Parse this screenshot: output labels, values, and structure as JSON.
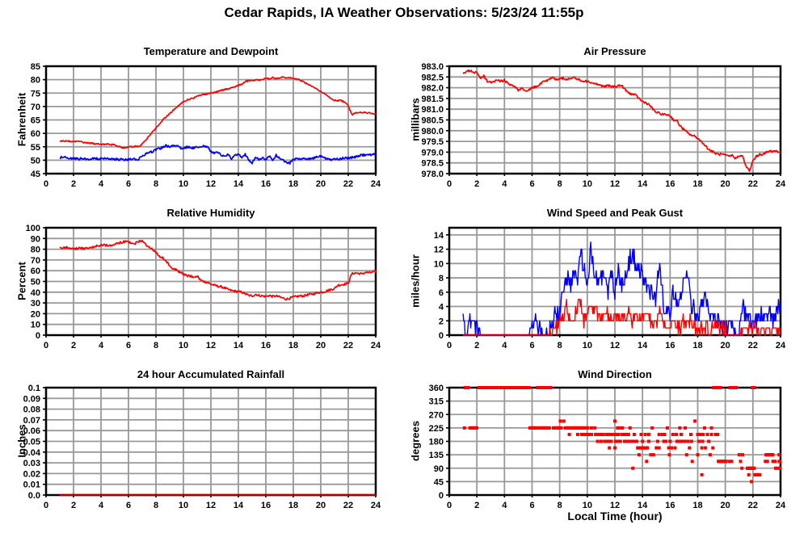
{
  "page_title": "Cedar Rapids, IA Weather Observations: 5/23/24 11:55p",
  "colors": {
    "line_red": "#ff0000",
    "line_blue": "#0000ff",
    "line_dark_red": "#aa0000",
    "grid_gray": "#999999",
    "frame_black": "#000000",
    "background": "#ffffff"
  },
  "chart_data": [
    {
      "type": "line",
      "title": "Temperature and Dewpoint",
      "ylabel": "Fahrenheit",
      "xlim": [
        0,
        24
      ],
      "xticks": [
        0,
        2,
        4,
        6,
        8,
        10,
        12,
        14,
        16,
        18,
        20,
        22,
        24
      ],
      "ylim": [
        45,
        85
      ],
      "yticks": [
        45,
        50,
        55,
        60,
        65,
        70,
        75,
        80,
        85
      ],
      "grid": true,
      "series": [
        {
          "name": "temperature",
          "color": "#ff0000",
          "x0": 1,
          "dx": 0.25,
          "jitter": 0.25,
          "width": 1.7,
          "values": [
            57.2,
            57.1,
            57.1,
            57,
            57,
            56.9,
            56.8,
            56.6,
            56.5,
            56.4,
            56.2,
            56,
            55.8,
            56,
            55.9,
            55.8,
            55.7,
            55.2,
            54.7,
            54.6,
            55,
            55.1,
            55.2,
            55.1,
            56,
            57.5,
            59,
            60.5,
            62,
            63.5,
            65,
            66.2,
            67.3,
            68.5,
            69.8,
            70.8,
            71.8,
            72.4,
            72.8,
            73.2,
            73.8,
            74.2,
            74.5,
            74.7,
            75,
            75.2,
            75.6,
            76,
            76.4,
            76.6,
            77,
            77.3,
            77.8,
            78.3,
            79.3,
            79.6,
            79.5,
            80,
            79.8,
            80.2,
            80.3,
            80.4,
            80.8,
            80.5,
            80.6,
            80.9,
            80.7,
            80.8,
            80.3,
            80.2,
            79.8,
            79.2,
            78.5,
            78,
            77.2,
            76.4,
            75.6,
            74.8,
            74,
            73,
            72.2,
            72.3,
            72.2,
            71.5,
            70.3,
            67,
            67.5,
            67.8,
            67.7,
            67.8,
            67.6,
            67.5,
            67
          ]
        },
        {
          "name": "dewpoint",
          "color": "#0000ff",
          "x0": 1,
          "dx": 0.25,
          "jitter": 0.4,
          "width": 1.7,
          "values": [
            51,
            51.2,
            50.8,
            50.7,
            50.6,
            50.5,
            50.5,
            50.5,
            50.5,
            50.5,
            50.6,
            50.5,
            50.5,
            50.6,
            50.6,
            50.5,
            50.4,
            50.3,
            50.2,
            50.1,
            50.3,
            50.3,
            50.4,
            50.5,
            51.5,
            52.3,
            52.8,
            53.2,
            53.8,
            54.3,
            54.8,
            55.5,
            54.8,
            55.3,
            55.6,
            54.6,
            54.2,
            55,
            54.8,
            54.4,
            55.2,
            54.6,
            55.4,
            54.8,
            53.2,
            52.6,
            52.8,
            52,
            51.6,
            52.2,
            50.4,
            51.8,
            52.4,
            51,
            52.2,
            50.2,
            48.8,
            51,
            50.4,
            50.8,
            50.2,
            51.4,
            50.2,
            51.8,
            50.6,
            50,
            49.2,
            49,
            50.2,
            50.6,
            50.4,
            50.5,
            50.4,
            50.6,
            50.8,
            51.2,
            51.4,
            51,
            50.4,
            50.2,
            50.3,
            50.4,
            50.6,
            50.8,
            50.8,
            51,
            51.2,
            51.6,
            52,
            51.8,
            52,
            52.1,
            52.2
          ]
        }
      ]
    },
    {
      "type": "line",
      "title": "Air Pressure",
      "ylabel": "millibars",
      "xlim": [
        0,
        24
      ],
      "xticks": [
        0,
        2,
        4,
        6,
        8,
        10,
        12,
        14,
        16,
        18,
        20,
        22,
        24
      ],
      "ylim": [
        978,
        983
      ],
      "yticks": [
        978,
        978.5,
        979,
        979.5,
        980,
        980.5,
        981,
        981.5,
        982,
        982.5,
        983
      ],
      "ytick_labels": [
        "978.0",
        "978.5",
        "979.0",
        "979.5",
        "980.0",
        "980.5",
        "981.0",
        "981.5",
        "982.0",
        "982.5",
        "983.0"
      ],
      "grid": true,
      "series": [
        {
          "name": "pressure",
          "color": "#ff0000",
          "x0": 1,
          "dx": 0.25,
          "jitter": 0.05,
          "width": 1.7,
          "values": [
            982.7,
            982.75,
            982.8,
            982.7,
            982.75,
            982.4,
            982.55,
            982.3,
            982.25,
            982.3,
            982.35,
            982.3,
            982.35,
            982.2,
            982.1,
            982.05,
            981.85,
            981.95,
            981.85,
            981.9,
            982,
            982.05,
            982.1,
            982.25,
            982.3,
            982.4,
            982.45,
            982.4,
            982.4,
            982.45,
            982.4,
            982.4,
            982.5,
            982.4,
            982.35,
            982.3,
            982.3,
            982.25,
            982.2,
            982.15,
            982.1,
            982.05,
            982.1,
            982.05,
            982.05,
            982.1,
            982.1,
            981.9,
            981.75,
            981.7,
            981.65,
            981.5,
            981.35,
            981.3,
            981.2,
            981,
            980.85,
            980.8,
            980.75,
            980.75,
            980.7,
            980.5,
            980.45,
            980.2,
            980.05,
            979.9,
            979.8,
            979.75,
            979.65,
            979.5,
            979.35,
            979.15,
            979.05,
            978.95,
            978.9,
            978.9,
            978.85,
            978.8,
            978.85,
            978.7,
            978.85,
            978.8,
            978.35,
            978.1,
            978.6,
            978.8,
            978.9,
            978.9,
            979,
            979.05,
            979.05,
            979.05,
            979
          ]
        }
      ]
    },
    {
      "type": "line",
      "title": "Relative Humidity",
      "ylabel": "Percent",
      "xlim": [
        0,
        24
      ],
      "xticks": [
        0,
        2,
        4,
        6,
        8,
        10,
        12,
        14,
        16,
        18,
        20,
        22,
        24
      ],
      "ylim": [
        0,
        100
      ],
      "yticks": [
        0,
        10,
        20,
        30,
        40,
        50,
        60,
        70,
        80,
        90,
        100
      ],
      "grid": true,
      "series": [
        {
          "name": "humidity",
          "color": "#ff0000",
          "x0": 1,
          "dx": 0.25,
          "jitter": 1,
          "width": 1.7,
          "values": [
            81,
            81.5,
            81.5,
            81,
            81,
            80.5,
            81,
            81,
            81.5,
            82,
            82.5,
            83,
            83.5,
            83.8,
            83.5,
            84,
            84.5,
            85.5,
            86.5,
            87,
            86.5,
            86,
            85.5,
            87,
            88,
            84.5,
            82,
            80,
            77,
            73,
            72,
            69,
            65,
            62,
            60.5,
            58.5,
            57,
            55.5,
            55,
            54,
            55,
            51,
            50,
            49,
            47.5,
            46.5,
            45.5,
            45,
            44,
            42.5,
            41.5,
            41,
            40.5,
            40,
            38.5,
            37,
            36.5,
            38,
            37,
            36.5,
            36,
            37,
            36,
            36.5,
            35.5,
            34.5,
            33.5,
            34.5,
            35.5,
            36,
            36.5,
            36.5,
            37.5,
            38,
            38.5,
            39.5,
            40,
            40.5,
            41.5,
            42.5,
            43.5,
            46.5,
            47,
            47.5,
            48.5,
            57,
            58,
            57.5,
            57,
            58.5,
            58,
            58.5,
            59.5
          ]
        }
      ]
    },
    {
      "type": "line",
      "title": "Wind Speed and Peak Gust",
      "ylabel": "miles/hour",
      "xlim": [
        0,
        24
      ],
      "xticks": [
        0,
        2,
        4,
        6,
        8,
        10,
        12,
        14,
        16,
        18,
        20,
        22,
        24
      ],
      "ylim": [
        0,
        15
      ],
      "yticks": [
        0,
        2,
        4,
        6,
        8,
        10,
        12,
        14
      ],
      "grid": true,
      "series": [
        {
          "name": "peak-gust",
          "color": "#0000ff",
          "x0": 1,
          "dx": 0.25,
          "jitter": 1.3,
          "quantize": true,
          "width": 1.4,
          "values": [
            2,
            0,
            2,
            1,
            1,
            0,
            0,
            0,
            0,
            0,
            0,
            0,
            0,
            0,
            0,
            0,
            0,
            0,
            0,
            0,
            2,
            2,
            1,
            0,
            0,
            1,
            2,
            3,
            3,
            7,
            8,
            7,
            9,
            8,
            11,
            10,
            6,
            12,
            9,
            7,
            8,
            8,
            6,
            8,
            6,
            9,
            7,
            8,
            10,
            11,
            10,
            9,
            9,
            7,
            6,
            6,
            5,
            11,
            4,
            4,
            3,
            6,
            5,
            5,
            8,
            9,
            5,
            3,
            2,
            4,
            6,
            4,
            3,
            2,
            2,
            1,
            1,
            2,
            1,
            0,
            0,
            4,
            3,
            2,
            1,
            2,
            2,
            3,
            2,
            3,
            2,
            4,
            3
          ]
        },
        {
          "name": "wind-speed",
          "color": "#ff0000",
          "x0": 1,
          "dx": 0.25,
          "jitter": 0.8,
          "quantize": true,
          "width": 1.4,
          "values": [
            0,
            0,
            0,
            0,
            0,
            0,
            0,
            0,
            0,
            0,
            0,
            0,
            0,
            0,
            0,
            0,
            0,
            0,
            0,
            0,
            0,
            0,
            0,
            0,
            0,
            0,
            1,
            1,
            2,
            2,
            4,
            2,
            2,
            4,
            5,
            2,
            3,
            4,
            4,
            3,
            2,
            3,
            3,
            2,
            3,
            2,
            3,
            2,
            3,
            2,
            3,
            2,
            3,
            3,
            2,
            1,
            2,
            3,
            2,
            1,
            1,
            2,
            1,
            1,
            2,
            2,
            2,
            1,
            0,
            1,
            1,
            1,
            1,
            2,
            1,
            1,
            1,
            0,
            0,
            0,
            0,
            1,
            1,
            1,
            1,
            1,
            0,
            1,
            1,
            1,
            1,
            1,
            0
          ]
        }
      ]
    },
    {
      "type": "line",
      "title": "24 hour Accumulated Rainfall",
      "ylabel": "Inches",
      "xlim": [
        0,
        24
      ],
      "xticks": [
        0,
        2,
        4,
        6,
        8,
        10,
        12,
        14,
        16,
        18,
        20,
        22,
        24
      ],
      "ylim": [
        0,
        0.1
      ],
      "yticks": [
        0,
        0.01,
        0.02,
        0.03,
        0.04,
        0.05,
        0.06,
        0.07,
        0.08,
        0.09,
        0.1
      ],
      "ytick_labels": [
        "0.0",
        "0.01",
        "0.02",
        "0.03",
        "0.04",
        "0.05",
        "0.06",
        "0.07",
        "0.08",
        "0.09",
        "0.1"
      ],
      "grid": true,
      "series": [
        {
          "name": "rainfall",
          "color": "#aa0000",
          "x": [
            1,
            24
          ],
          "jitter": 0,
          "width": 2.5,
          "values": [
            0,
            0
          ]
        }
      ]
    },
    {
      "type": "scatter",
      "title": "Wind Direction",
      "ylabel": "degrees",
      "xlabel": "Local Time (hour)",
      "xlim": [
        0,
        24
      ],
      "xticks": [
        0,
        2,
        4,
        6,
        8,
        10,
        12,
        14,
        16,
        18,
        20,
        22,
        24
      ],
      "ylim": [
        0,
        360
      ],
      "yticks": [
        0,
        45,
        90,
        135,
        180,
        225,
        270,
        315,
        360
      ],
      "grid": true,
      "marker_color": "#ff0000",
      "groups": [
        {
          "deg": 360,
          "bands": [
            [
              1.15,
              1.4
            ],
            [
              2.15,
              5.85
            ],
            [
              6.4,
              6.75
            ],
            [
              6.85,
              7.35
            ],
            [
              19.15,
              19.45
            ],
            [
              20.35,
              20.8
            ]
          ],
          "points": [
            19.65,
            21.95,
            22.1
          ]
        },
        {
          "deg": 248,
          "bands": [],
          "points": [
            8.05,
            8.3,
            12.0,
            17.8
          ]
        },
        {
          "deg": 225,
          "bands": [
            [
              1.5,
              2.05
            ],
            [
              5.85,
              6.35
            ],
            [
              6.55,
              7.3
            ],
            [
              7.55,
              8.15
            ],
            [
              8.4,
              10.05
            ]
          ],
          "points": [
            1.1,
            10.3,
            10.55,
            12.2,
            12.4,
            12.55,
            13.1,
            14.7,
            15.8,
            16.7,
            17.1,
            18.5,
            19.0
          ]
        },
        {
          "deg": 203,
          "bands": [
            [
              9.6,
              10.3
            ],
            [
              10.6,
              11.2
            ],
            [
              11.4,
              12.3
            ],
            [
              12.5,
              13.05
            ]
          ],
          "points": [
            8.7,
            9.3,
            13.4,
            13.9,
            14.2,
            14.45,
            15.2,
            15.45,
            15.6,
            16.2,
            16.45,
            16.8,
            17.5,
            18.0,
            18.2,
            18.4,
            18.7,
            19.0,
            19.3,
            19.45
          ]
        },
        {
          "deg": 180,
          "bands": [
            [
              11.45,
              11.75
            ],
            [
              12.05,
              12.45
            ],
            [
              13.3,
              13.6
            ],
            [
              16.5,
              17.1
            ]
          ],
          "points": [
            10.75,
            11.0,
            11.25,
            12.7,
            12.9,
            13.1,
            14.0,
            14.45,
            15.1,
            15.55,
            15.7,
            16.0,
            17.3,
            17.55,
            18.1,
            18.35,
            18.8
          ]
        },
        {
          "deg": 158,
          "bands": [
            [
              13.65,
              14.35
            ]
          ],
          "points": [
            11.6,
            12.0,
            15.0,
            15.2,
            15.9,
            16.1,
            16.35,
            17.4,
            18.3,
            18.55,
            19.1
          ]
        },
        {
          "deg": 135,
          "bands": [
            [
              22.95,
              23.45
            ]
          ],
          "points": [
            13.75,
            14.6,
            14.8,
            15.95,
            17.2,
            18.0,
            18.9,
            21.0,
            21.25,
            23.9
          ]
        },
        {
          "deg": 113,
          "bands": [
            [
              19.5,
              20.1
            ]
          ],
          "points": [
            14.3,
            17.6,
            20.3,
            20.45,
            21.1,
            22.9,
            23.05,
            23.45,
            23.6,
            23.9,
            24.0
          ]
        },
        {
          "deg": 90,
          "bands": [
            [
              21.6,
              22.1
            ]
          ],
          "points": [
            13.3,
            21.2,
            23.65,
            23.8,
            23.95
          ]
        },
        {
          "deg": 68,
          "bands": [
            [
              22.15,
              22.5
            ]
          ],
          "points": [
            18.3,
            21.7
          ]
        },
        {
          "deg": 45,
          "bands": [],
          "points": [
            21.9
          ]
        }
      ]
    }
  ]
}
